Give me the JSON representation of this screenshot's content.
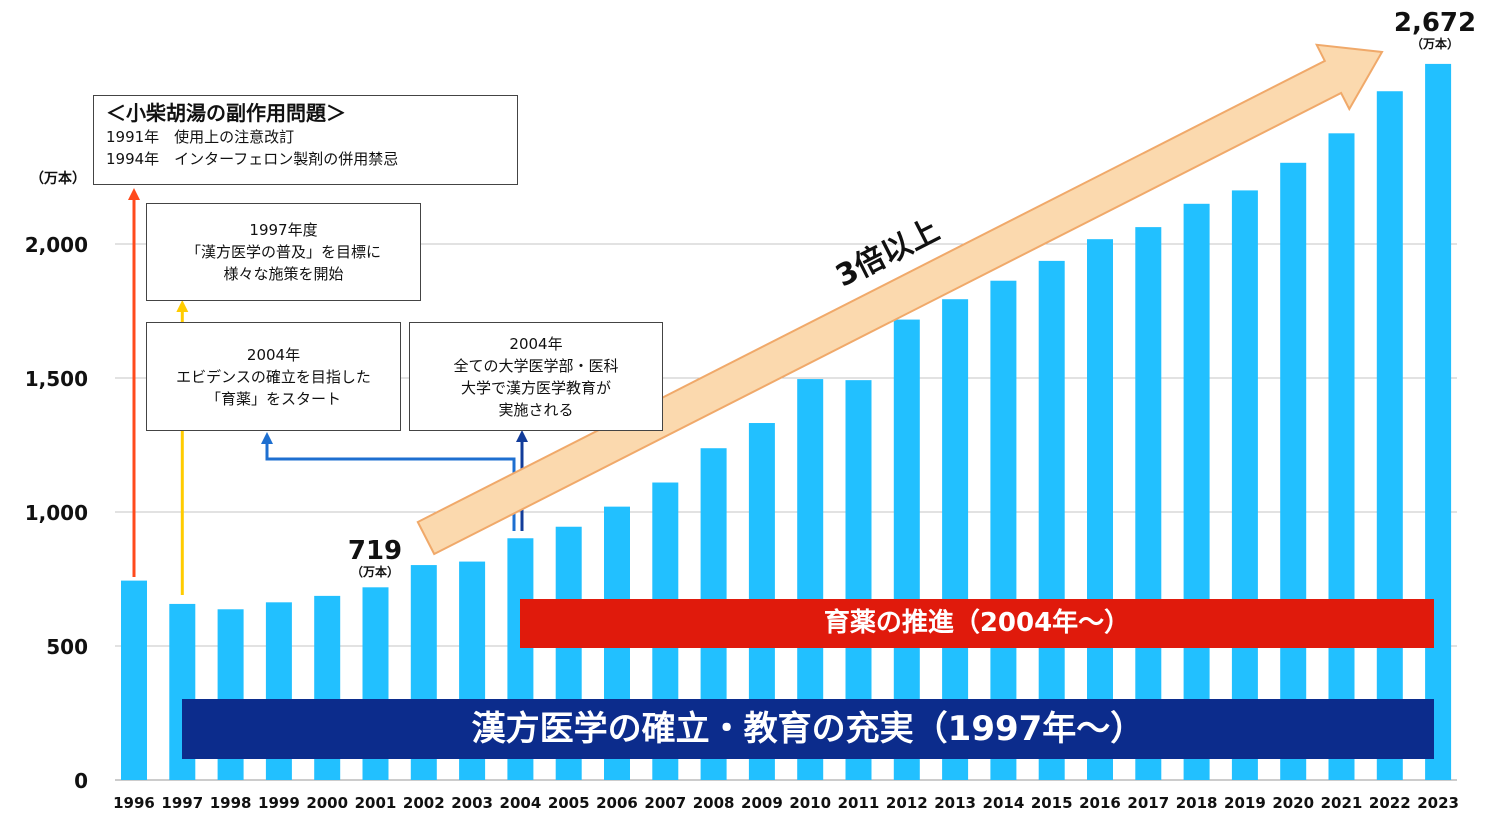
{
  "chart_data": {
    "type": "bar",
    "categories": [
      "1996",
      "1997",
      "1998",
      "1999",
      "2000",
      "2001",
      "2002",
      "2003",
      "2004",
      "2005",
      "2006",
      "2007",
      "2008",
      "2009",
      "2010",
      "2011",
      "2012",
      "2013",
      "2014",
      "2015",
      "2016",
      "2017",
      "2018",
      "2019",
      "2020",
      "2021",
      "2022",
      "2023"
    ],
    "values": [
      744,
      657,
      637,
      663,
      687,
      719,
      802,
      815,
      902,
      945,
      1020,
      1110,
      1238,
      1332,
      1496,
      1492,
      1718,
      1794,
      1863,
      1937,
      2018,
      2063,
      2150,
      2200,
      2303,
      2413,
      2570,
      2672
    ],
    "ylim": [
      0,
      2700
    ],
    "yticks": [
      0,
      500,
      1000,
      1500,
      2000
    ],
    "ytick_labels": [
      "0",
      "500",
      "1,000",
      "1,500",
      "2,000"
    ],
    "ylabel": "（万本）",
    "grid": true,
    "bar_color": "#22C0FF",
    "annotations": {
      "v2001": {
        "value": "719",
        "unit": "（万本）"
      },
      "v2023": {
        "value": "2,672",
        "unit": "（万本）"
      },
      "growth": "3倍以上"
    }
  },
  "boxes": {
    "side_effect": {
      "title": "＜小柴胡湯の副作用問題＞",
      "line1": "1991年　使用上の注意改訂",
      "line2": "1994年　インターフェロン製剤の併用禁忌"
    },
    "y1997": {
      "line1": "1997年度",
      "line2": "「漢方医学の普及」を目標に",
      "line3": "様々な施策を開始"
    },
    "ikuyaku": {
      "line1": "2004年",
      "line2": "エビデンスの確立を目指した",
      "line3": "「育薬」をスタート"
    },
    "education": {
      "line1": "2004年",
      "line2": "全ての大学医学部・医科",
      "line3": "大学で漢方医学教育が",
      "line4": "実施される"
    }
  },
  "banners": {
    "red": "育薬の推進（2004年〜）",
    "blue": "漢方医学の確立・教育の充実（1997年〜）"
  },
  "colors": {
    "arrow_red": "#FF4A1C",
    "arrow_yellow": "#FFCC00",
    "arrow_blue": "#1E6FD0",
    "arrow_navy": "#123C9A",
    "banner_red": "#E01A0C",
    "banner_navy": "#0C2C8C",
    "growth_arrow_fill": "#FBD9AE",
    "growth_arrow_stroke": "#F0A96A"
  }
}
